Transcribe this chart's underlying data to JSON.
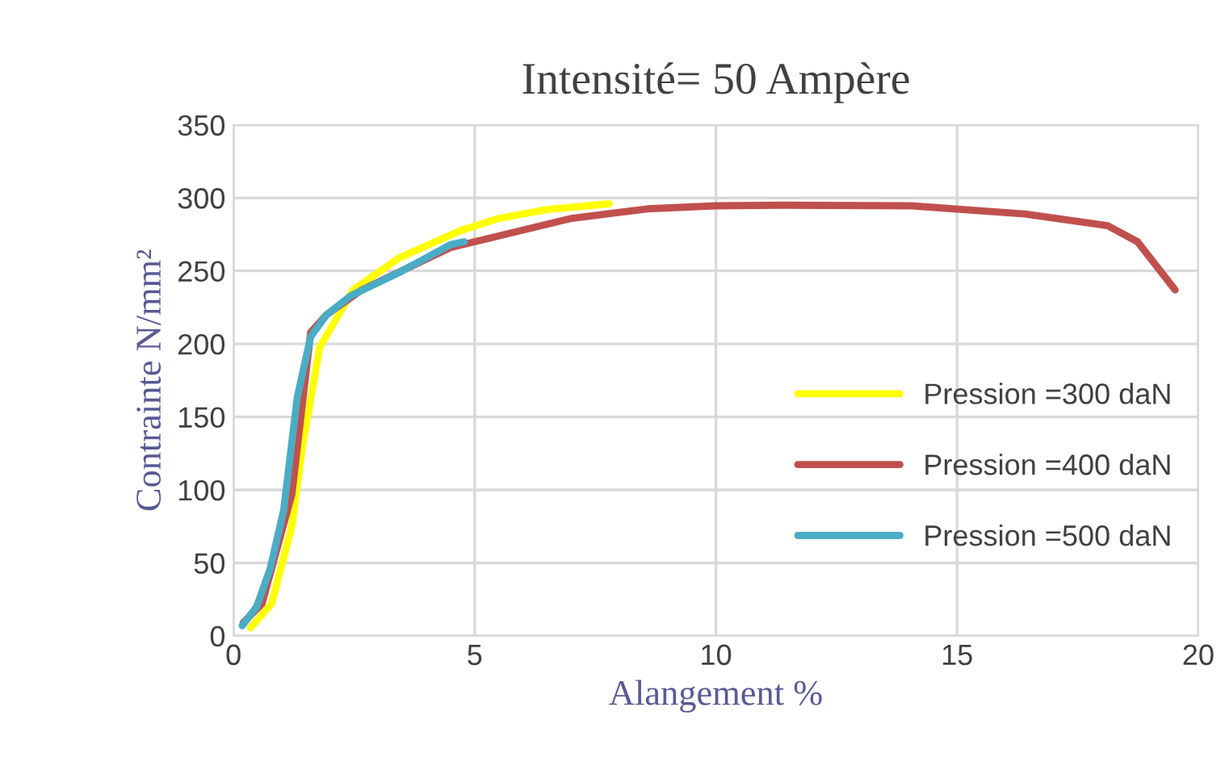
{
  "chart_data": {
    "type": "line",
    "title": "Intensité= 50 Ampère",
    "xlabel": "Alangement %",
    "ylabel": "Contrainte N/mm²",
    "xlim": [
      0,
      20
    ],
    "xticks": [
      0,
      5,
      10,
      15,
      20
    ],
    "ylim": [
      0,
      350
    ],
    "yticks": [
      0,
      50,
      100,
      150,
      200,
      250,
      300,
      350
    ],
    "grid": true,
    "legend": "right",
    "marker": "none",
    "line_style": "solid",
    "series": [
      {
        "name": "Pression =300 daN",
        "color": "#ffff00",
        "x": [
          0.35,
          0.79,
          1.21,
          1.43,
          1.79,
          2.48,
          3.44,
          4.66,
          5.5,
          6.5,
          7.79
        ],
        "values": [
          5.5,
          22,
          75,
          130,
          198,
          237,
          259,
          277,
          286,
          292,
          296
        ]
      },
      {
        "name": "Pression =400 daN",
        "color": "#c0504d",
        "x": [
          0.2,
          0.59,
          1.21,
          1.6,
          1.93,
          2.66,
          3.55,
          4.5,
          7.01,
          8.58,
          10.0,
          11.4,
          14.05,
          16.4,
          18.12,
          18.74,
          19.52
        ],
        "values": [
          9,
          22,
          97,
          208,
          220,
          237,
          251,
          266,
          286,
          292.5,
          294.6,
          295,
          294.6,
          289,
          281,
          270,
          237
        ]
      },
      {
        "name": "Pression =500 daN",
        "color": "#4bacc6",
        "x": [
          0.18,
          0.48,
          0.76,
          1.04,
          1.32,
          1.6,
          1.93,
          2.43,
          3.44,
          4.5,
          4.78
        ],
        "values": [
          7,
          20,
          46,
          86,
          163,
          205,
          220,
          233,
          249,
          268,
          270
        ]
      }
    ]
  }
}
